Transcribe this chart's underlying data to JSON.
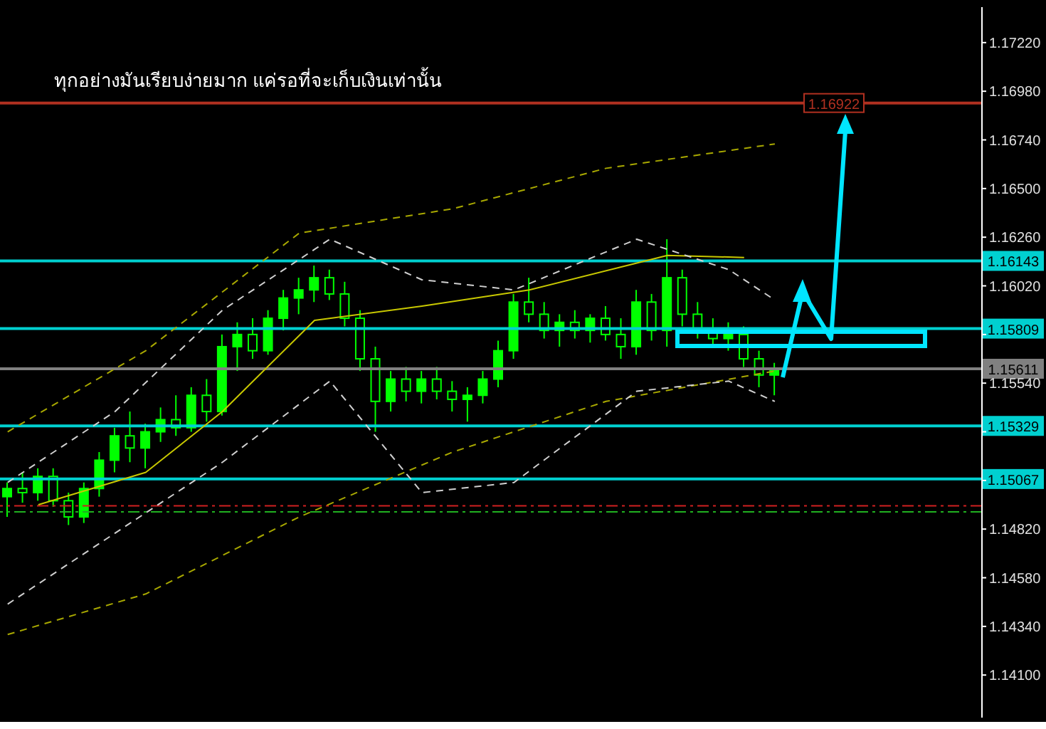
{
  "chart_data": {
    "type": "candlestick",
    "title": "ทุกอย่างมันเรียบง่ายมาก แค่รอที่จะเก็บเงินเท่านั้น",
    "categories": [
      null,
      null,
      null,
      null,
      null,
      null,
      null,
      null,
      null,
      null,
      null,
      null,
      null,
      null,
      null,
      null,
      null,
      null,
      null,
      null,
      null,
      null,
      null,
      null,
      null,
      null,
      null,
      null,
      null,
      null,
      null,
      null,
      null,
      null,
      null,
      null,
      null,
      null,
      null,
      null,
      null,
      null,
      null,
      null,
      null,
      null,
      null,
      null,
      null,
      null,
      null,
      null,
      null,
      null,
      null,
      null,
      null,
      null,
      null,
      null,
      null,
      null,
      null,
      null
    ],
    "ohlc": [
      [
        1.1498,
        1.1505,
        1.1488,
        1.1502
      ],
      [
        1.1502,
        1.151,
        1.1495,
        1.15
      ],
      [
        1.15,
        1.1512,
        1.1496,
        1.1508
      ],
      [
        1.1508,
        1.1512,
        1.1493,
        1.1496
      ],
      [
        1.1496,
        1.15,
        1.1484,
        1.1488
      ],
      [
        1.1488,
        1.1505,
        1.1485,
        1.1502
      ],
      [
        1.1502,
        1.152,
        1.1498,
        1.1516
      ],
      [
        1.1516,
        1.1532,
        1.151,
        1.1528
      ],
      [
        1.1528,
        1.154,
        1.1515,
        1.1522
      ],
      [
        1.1522,
        1.1534,
        1.1512,
        1.153
      ],
      [
        1.153,
        1.1542,
        1.1525,
        1.1536
      ],
      [
        1.1536,
        1.1548,
        1.1528,
        1.1532
      ],
      [
        1.1532,
        1.1552,
        1.153,
        1.1548
      ],
      [
        1.1548,
        1.1556,
        1.1535,
        1.154
      ],
      [
        1.154,
        1.1578,
        1.1538,
        1.1572
      ],
      [
        1.1572,
        1.1584,
        1.156,
        1.1578
      ],
      [
        1.1578,
        1.1586,
        1.1566,
        1.157
      ],
      [
        1.157,
        1.159,
        1.1568,
        1.1586
      ],
      [
        1.1586,
        1.16,
        1.158,
        1.1596
      ],
      [
        1.1596,
        1.1606,
        1.1588,
        1.16
      ],
      [
        1.16,
        1.1612,
        1.1594,
        1.1606
      ],
      [
        1.1606,
        1.161,
        1.1595,
        1.1598
      ],
      [
        1.1598,
        1.1604,
        1.1582,
        1.1586
      ],
      [
        1.1586,
        1.159,
        1.156,
        1.1566
      ],
      [
        1.1566,
        1.1572,
        1.153,
        1.1545
      ],
      [
        1.1545,
        1.156,
        1.154,
        1.1556
      ],
      [
        1.1556,
        1.1562,
        1.1545,
        1.155
      ],
      [
        1.155,
        1.156,
        1.1544,
        1.1556
      ],
      [
        1.1556,
        1.1562,
        1.1546,
        1.155
      ],
      [
        1.155,
        1.1555,
        1.154,
        1.1546
      ],
      [
        1.1546,
        1.1552,
        1.1535,
        1.1548
      ],
      [
        1.1548,
        1.156,
        1.1544,
        1.1556
      ],
      [
        1.1556,
        1.1575,
        1.1552,
        1.157
      ],
      [
        1.157,
        1.1598,
        1.1566,
        1.1594
      ],
      [
        1.1594,
        1.1606,
        1.1584,
        1.1588
      ],
      [
        1.1588,
        1.1594,
        1.1576,
        1.158
      ],
      [
        1.158,
        1.1588,
        1.1572,
        1.1584
      ],
      [
        1.1584,
        1.159,
        1.1576,
        1.158
      ],
      [
        1.158,
        1.1588,
        1.1574,
        1.1586
      ],
      [
        1.1586,
        1.1592,
        1.1575,
        1.1578
      ],
      [
        1.1578,
        1.1586,
        1.1566,
        1.1572
      ],
      [
        1.1572,
        1.16,
        1.1568,
        1.1594
      ],
      [
        1.1594,
        1.1598,
        1.1575,
        1.158
      ],
      [
        1.158,
        1.1625,
        1.1572,
        1.1606
      ],
      [
        1.1606,
        1.161,
        1.1582,
        1.1588
      ],
      [
        1.1588,
        1.1594,
        1.1576,
        1.158
      ],
      [
        1.158,
        1.1586,
        1.1572,
        1.1576
      ],
      [
        1.1576,
        1.1584,
        1.157,
        1.1578
      ],
      [
        1.1578,
        1.1582,
        1.1562,
        1.1566
      ],
      [
        1.1566,
        1.157,
        1.1552,
        1.1558
      ],
      [
        1.1558,
        1.1564,
        1.1548,
        1.1561
      ],
      null,
      null,
      null,
      null,
      null,
      null,
      null,
      null,
      null,
      null,
      null,
      null,
      null
    ],
    "color": "#00ff00",
    "ylim": [
      1.1389,
      1.17395
    ],
    "yticks": [
      {
        "value": 1.1722,
        "label": "1.17220"
      },
      {
        "value": 1.1698,
        "label": "1.16980"
      },
      {
        "value": 1.1674,
        "label": "1.16740"
      },
      {
        "value": 1.165,
        "label": "1.16500"
      },
      {
        "value": 1.1626,
        "label": "1.16260"
      },
      {
        "value": 1.1602,
        "label": "1.16020"
      },
      {
        "value": 1.1578,
        "label": null
      },
      {
        "value": 1.1554,
        "label": "1.15540"
      },
      {
        "value": 1.153,
        "label": null
      },
      {
        "value": 1.1506,
        "label": null
      },
      {
        "value": 1.1482,
        "label": "1.14820"
      },
      {
        "value": 1.1458,
        "label": "1.14580"
      },
      {
        "value": 1.1434,
        "label": "1.14340"
      },
      {
        "value": 1.141,
        "label": "1.14100"
      }
    ],
    "tick_labels": "y",
    "grid": false,
    "series": [
      {
        "type": "line",
        "values": [
          null,
          null,
          1.1494,
          null,
          null,
          null,
          null,
          null,
          null,
          1.151,
          null,
          null,
          null,
          null,
          1.154,
          null,
          null,
          null,
          null,
          null,
          1.1585,
          null,
          null,
          null,
          null,
          null,
          null,
          1.1592,
          null,
          null,
          null,
          null,
          null,
          null,
          1.16,
          null,
          null,
          null,
          null,
          null,
          null,
          null,
          null,
          1.1617,
          null,
          null,
          null,
          null,
          1.1616,
          null,
          null,
          null,
          null,
          null,
          null,
          null,
          null,
          null,
          null,
          null,
          null,
          null,
          null,
          null
        ],
        "color": "#c8c800",
        "line_style": "solid"
      },
      {
        "type": "line",
        "values": [
          1.153,
          null,
          null,
          null,
          null,
          null,
          null,
          null,
          null,
          1.157,
          null,
          null,
          null,
          null,
          null,
          null,
          null,
          null,
          null,
          1.1628,
          null,
          null,
          null,
          null,
          null,
          null,
          null,
          null,
          null,
          1.164,
          null,
          null,
          null,
          null,
          null,
          null,
          null,
          null,
          null,
          1.166,
          null,
          null,
          null,
          null,
          null,
          null,
          null,
          null,
          null,
          null,
          1.1672,
          null,
          null,
          null,
          null,
          null,
          null,
          null,
          null,
          null,
          null,
          null,
          null,
          null
        ],
        "color": "#a8a800",
        "line_style": "dashed"
      },
      {
        "type": "line",
        "values": [
          1.143,
          null,
          null,
          null,
          null,
          null,
          null,
          null,
          null,
          1.145,
          null,
          null,
          null,
          null,
          null,
          null,
          null,
          null,
          null,
          1.1488,
          null,
          null,
          null,
          null,
          null,
          null,
          null,
          null,
          null,
          1.152,
          null,
          null,
          null,
          null,
          null,
          null,
          null,
          null,
          null,
          1.1545,
          null,
          null,
          null,
          null,
          null,
          null,
          null,
          null,
          null,
          null,
          1.156,
          null,
          null,
          null,
          null,
          null,
          null,
          null,
          null,
          null,
          null,
          null,
          null,
          null
        ],
        "color": "#a8a800",
        "line_style": "dashed"
      },
      {
        "type": "line",
        "values": [
          1.1505,
          null,
          null,
          null,
          null,
          null,
          null,
          1.154,
          null,
          null,
          null,
          null,
          null,
          null,
          1.159,
          null,
          null,
          null,
          null,
          null,
          null,
          1.1625,
          null,
          null,
          null,
          null,
          null,
          1.1605,
          null,
          null,
          null,
          null,
          null,
          1.16,
          null,
          null,
          null,
          null,
          null,
          null,
          null,
          1.1625,
          null,
          null,
          null,
          null,
          null,
          1.161,
          null,
          null,
          1.1595,
          null,
          null,
          null,
          null,
          null,
          null,
          null,
          null,
          null,
          null,
          null,
          null,
          null
        ],
        "color": "#d0d0d0",
        "line_style": "dashed"
      },
      {
        "type": "line",
        "values": [
          1.1445,
          null,
          null,
          null,
          null,
          null,
          null,
          1.148,
          null,
          null,
          null,
          null,
          null,
          null,
          1.1515,
          null,
          null,
          null,
          null,
          null,
          null,
          1.1555,
          null,
          null,
          null,
          null,
          null,
          1.15,
          null,
          null,
          null,
          null,
          null,
          1.1505,
          null,
          null,
          null,
          null,
          null,
          null,
          null,
          1.155,
          null,
          null,
          null,
          null,
          null,
          1.1555,
          null,
          null,
          1.1545,
          null,
          null,
          null,
          null,
          null,
          null,
          null,
          null,
          null,
          null,
          null,
          null,
          null
        ],
        "color": "#d0d0d0",
        "line_style": "dashed"
      }
    ],
    "ref_lines": [
      {
        "axis": "y",
        "value": 1.16922,
        "label": "1.16922",
        "color": "#b03020"
      },
      {
        "axis": "y",
        "value": 1.16143,
        "label": "1.16143",
        "color": "#00d0d0"
      },
      {
        "axis": "y",
        "value": 1.15809,
        "label": "1.15809",
        "color": "#00d0d0"
      },
      {
        "axis": "y",
        "value": 1.15611,
        "label": "1.15611",
        "color": "#808080"
      },
      {
        "axis": "y",
        "value": 1.15329,
        "label": "1.15329",
        "color": "#00d0d0"
      },
      {
        "axis": "y",
        "value": 1.15067,
        "label": "1.15067",
        "color": "#00d0d0"
      },
      {
        "axis": "y",
        "value": 1.14935,
        "label": null,
        "color": "#d02020",
        "line_style": "dashed"
      },
      {
        "axis": "y",
        "value": 1.14905,
        "label": null,
        "color": "#20b020",
        "line_style": "dashed"
      }
    ]
  }
}
